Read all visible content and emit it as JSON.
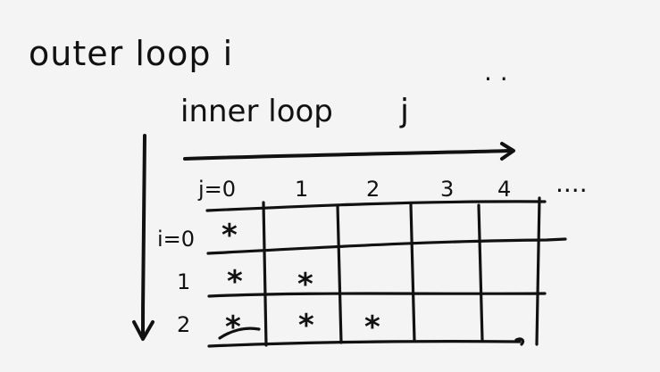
{
  "title": {
    "outer": "outer loop i",
    "inner": "inner loop",
    "inner_var": "j"
  },
  "dots": {
    "top": "·   ·",
    "right": "...."
  },
  "column_labels": [
    "j=0",
    "1",
    "2",
    "3",
    "4"
  ],
  "row_labels": [
    "i=0",
    "1",
    "2"
  ],
  "marks": {
    "symbol": "*",
    "rows": [
      [
        true,
        false,
        false,
        false,
        false
      ],
      [
        true,
        true,
        false,
        false,
        false
      ],
      [
        true,
        true,
        true,
        false,
        false
      ]
    ]
  },
  "colors": {
    "ink": "#111111",
    "paper": "#f4f4f4"
  }
}
